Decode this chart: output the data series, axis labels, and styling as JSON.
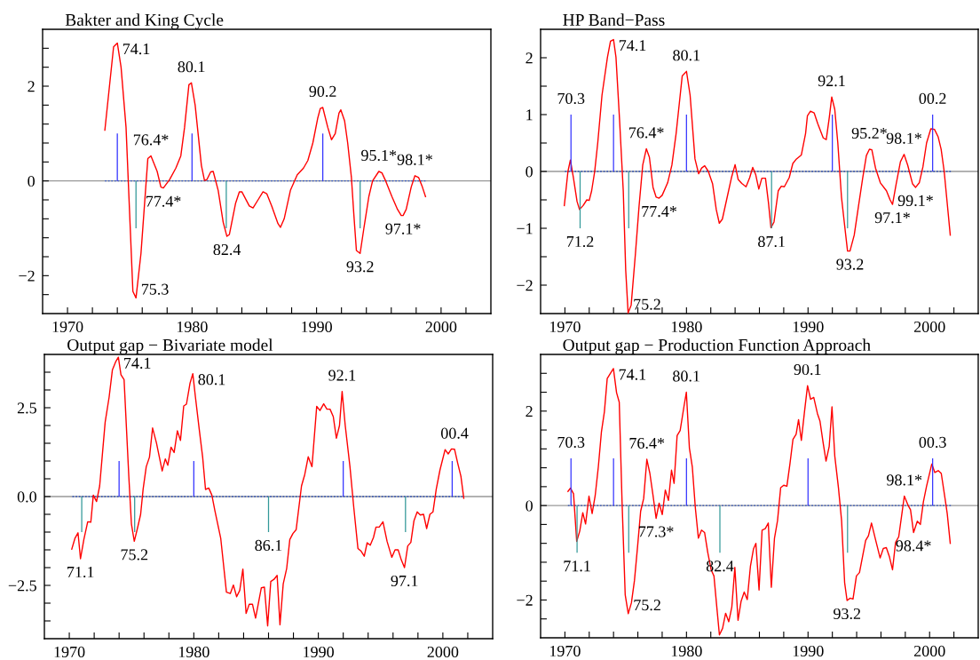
{
  "chart_data": [
    {
      "type": "line",
      "title": "Bakter and King Cycle",
      "xlim": [
        1968,
        2004
      ],
      "ylim": [
        -2.8,
        3.2
      ],
      "xticks": [
        1970,
        {
          "value": 1972,
          "label": null
        },
        {
          "value": 1974,
          "label": null
        },
        {
          "value": 1976,
          "label": null
        },
        {
          "value": 1978,
          "label": null
        },
        1980,
        {
          "value": 1982,
          "label": null
        },
        {
          "value": 1984,
          "label": null
        },
        {
          "value": 1986,
          "label": null
        },
        {
          "value": 1988,
          "label": null
        },
        1990,
        {
          "value": 1992,
          "label": null
        },
        {
          "value": 1994,
          "label": null
        },
        {
          "value": 1996,
          "label": null
        },
        {
          "value": 1998,
          "label": null
        },
        2000,
        {
          "value": 2002,
          "label": null
        }
      ],
      "yticks": [
        {
          "value": -2.4,
          "label": null
        },
        {
          "value": -2,
          "label": "−2"
        },
        {
          "value": -1.6,
          "label": null
        },
        {
          "value": -1.2,
          "label": null
        },
        {
          "value": -0.8,
          "label": null
        },
        {
          "value": -0.4,
          "label": null
        },
        0,
        {
          "value": 0.4,
          "label": null
        },
        {
          "value": 0.8,
          "label": null
        },
        {
          "value": 1.2,
          "label": null
        },
        {
          "value": 1.6,
          "label": null
        },
        2,
        {
          "value": 2.4,
          "label": null
        },
        {
          "value": 2.8,
          "label": null
        }
      ],
      "ref_lines": [
        {
          "axis": "y",
          "value": 0,
          "color": "#999999"
        }
      ],
      "series": [
        {
          "type": "line",
          "line_style": "dotted",
          "color": "#3355bb",
          "x": [
            1973.0,
            1998.75
          ],
          "values": [
            0,
            0
          ]
        },
        {
          "type": "bar",
          "color": "#3333ff",
          "x": [
            1974.0,
            1980.0,
            1990.5
          ],
          "values": [
            1,
            1,
            1
          ]
        },
        {
          "type": "bar",
          "color": "#339999",
          "x": [
            1975.5,
            1982.75,
            1993.5
          ],
          "values": [
            -1,
            -1,
            -1
          ]
        },
        {
          "type": "line",
          "color": "#ff0000",
          "x": [
            1973.0,
            1973.7,
            1974.0,
            1974.3,
            1974.7,
            1975.25,
            1975.5,
            1975.9,
            1976.45,
            1976.7,
            1977.2,
            1977.5,
            1977.7,
            1978.2,
            1978.7,
            1979.1,
            1979.4,
            1979.75,
            1979.95,
            1980.25,
            1980.75,
            1981.0,
            1981.2,
            1981.5,
            1981.7,
            1982.1,
            1982.5,
            1982.8,
            1983.0,
            1983.5,
            1983.8,
            1984.0,
            1984.6,
            1984.9,
            1985.3,
            1985.7,
            1986.0,
            1986.4,
            1986.9,
            1987.1,
            1987.4,
            1987.9,
            1988.45,
            1988.95,
            1989.3,
            1989.7,
            1990.1,
            1990.3,
            1990.5,
            1990.9,
            1991.2,
            1991.5,
            1991.8,
            1991.95,
            1992.25,
            1992.5,
            1992.8,
            1993.0,
            1993.2,
            1993.5,
            1993.8,
            1994.2,
            1994.5,
            1995.0,
            1995.25,
            1995.55,
            1996.05,
            1996.5,
            1996.8,
            1996.95,
            1997.2,
            1997.6,
            1997.9,
            1998.2,
            1998.5,
            1998.75
          ],
          "values": [
            1.07,
            2.83,
            2.91,
            2.4,
            1.13,
            -2.33,
            -2.47,
            -1.53,
            0.47,
            0.53,
            0.2,
            -0.13,
            -0.15,
            0.03,
            0.27,
            0.53,
            1.13,
            2.03,
            2.07,
            1.6,
            0.33,
            0.01,
            0.03,
            0.19,
            0.2,
            -0.2,
            -0.87,
            -1.17,
            -1.13,
            -0.47,
            -0.23,
            -0.23,
            -0.53,
            -0.57,
            -0.4,
            -0.23,
            -0.27,
            -0.53,
            -0.9,
            -0.98,
            -0.8,
            -0.2,
            0.13,
            0.27,
            0.43,
            0.8,
            1.33,
            1.53,
            1.55,
            1.13,
            0.87,
            1.0,
            1.43,
            1.5,
            1.27,
            0.8,
            0.07,
            -0.73,
            -1.47,
            -1.53,
            -1.0,
            -0.33,
            0.0,
            0.2,
            0.17,
            0.0,
            -0.33,
            -0.6,
            -0.73,
            -0.73,
            -0.6,
            -0.13,
            0.11,
            0.07,
            -0.13,
            -0.33
          ]
        }
      ],
      "annotations": [
        {
          "text": "74.1",
          "x": 1974.0,
          "y": 2.91
        },
        {
          "text": "75.3",
          "x": 1975.5,
          "y": -2.47
        },
        {
          "text": "76.4*",
          "x": 1976.7,
          "y": 0.53
        },
        {
          "text": "77.4*",
          "x": 1977.7,
          "y": -0.15
        },
        {
          "text": "80.1",
          "x": 1979.95,
          "y": 2.07
        },
        {
          "text": "82.4",
          "x": 1982.8,
          "y": -1.17
        },
        {
          "text": "90.2",
          "x": 1990.5,
          "y": 1.55
        },
        {
          "text": "93.2",
          "x": 1993.5,
          "y": -1.53
        },
        {
          "text": "95.1*",
          "x": 1995.0,
          "y": 0.2
        },
        {
          "text": "97.1*",
          "x": 1996.95,
          "y": -0.73
        },
        {
          "text": "98.1*",
          "x": 1997.9,
          "y": 0.11
        }
      ]
    },
    {
      "type": "line",
      "title": "HP Band−Pass",
      "xlim": [
        1968,
        2004
      ],
      "ylim": [
        -2.5,
        2.5
      ],
      "xticks": [
        1970,
        {
          "value": 1972,
          "label": null
        },
        {
          "value": 1974,
          "label": null
        },
        {
          "value": 1976,
          "label": null
        },
        {
          "value": 1978,
          "label": null
        },
        1980,
        {
          "value": 1982,
          "label": null
        },
        {
          "value": 1984,
          "label": null
        },
        {
          "value": 1986,
          "label": null
        },
        {
          "value": 1988,
          "label": null
        },
        1990,
        {
          "value": 1992,
          "label": null
        },
        {
          "value": 1994,
          "label": null
        },
        {
          "value": 1996,
          "label": null
        },
        {
          "value": 1998,
          "label": null
        },
        2000,
        {
          "value": 2002,
          "label": null
        }
      ],
      "yticks": [
        {
          "value": -2,
          "label": "−2"
        },
        {
          "value": -1.5,
          "label": null
        },
        {
          "value": -1,
          "label": "−1"
        },
        {
          "value": -0.5,
          "label": null
        },
        0,
        {
          "value": 0.5,
          "label": null
        },
        1,
        {
          "value": 1.5,
          "label": null
        },
        2
      ],
      "ref_lines": [
        {
          "axis": "y",
          "value": 0,
          "color": "#999999"
        }
      ],
      "series": [
        {
          "type": "line",
          "line_style": "dotted",
          "color": "#3355bb",
          "x": [
            1970.0,
            2001.75
          ],
          "values": [
            0,
            0
          ]
        },
        {
          "type": "bar",
          "color": "#3333ff",
          "x": [
            1970.5,
            1974.0,
            1980.0,
            1992.0,
            2000.25
          ],
          "values": [
            1,
            1,
            1,
            1,
            1
          ]
        },
        {
          "type": "bar",
          "color": "#339999",
          "x": [
            1971.25,
            1975.25,
            1987.0,
            1993.25
          ],
          "values": [
            -1,
            -1,
            -1,
            -1
          ]
        },
        {
          "type": "line",
          "color": "#ff0000",
          "x": [
            1969.95,
            1970.25,
            1970.45,
            1970.7,
            1971.0,
            1971.2,
            1971.5,
            1971.8,
            1972.0,
            1972.2,
            1972.45,
            1972.7,
            1973.05,
            1973.5,
            1973.75,
            1974.0,
            1974.2,
            1974.5,
            1974.8,
            1975.0,
            1975.2,
            1975.45,
            1975.8,
            1976.1,
            1976.4,
            1976.7,
            1976.95,
            1977.25,
            1977.5,
            1977.75,
            1978.0,
            1978.45,
            1978.8,
            1979.15,
            1979.65,
            1980.0,
            1980.3,
            1980.7,
            1981.0,
            1981.25,
            1981.5,
            1981.8,
            1982.15,
            1982.45,
            1982.7,
            1982.95,
            1983.3,
            1983.7,
            1984.0,
            1984.25,
            1984.55,
            1984.9,
            1985.2,
            1985.45,
            1985.7,
            1985.95,
            1986.2,
            1986.5,
            1986.75,
            1986.95,
            1987.2,
            1987.55,
            1987.8,
            1988.05,
            1988.45,
            1988.75,
            1989.05,
            1989.45,
            1989.8,
            1989.95,
            1990.2,
            1990.5,
            1990.8,
            1991.25,
            1991.5,
            1991.75,
            1991.95,
            1992.2,
            1992.45,
            1992.75,
            1993.1,
            1993.25,
            1993.45,
            1993.8,
            1994.15,
            1994.5,
            1994.8,
            1995.05,
            1995.25,
            1995.55,
            1995.95,
            1996.45,
            1996.75,
            1996.95,
            1997.25,
            1997.6,
            1997.9,
            1998.2,
            1998.6,
            1998.85,
            1999.15,
            1999.45,
            1999.75,
            2000.1,
            2000.4,
            2000.7,
            2000.95,
            2001.2,
            2001.4,
            2001.7
          ],
          "values": [
            -0.6,
            0.0,
            0.2,
            -0.11,
            -0.53,
            -0.67,
            -0.6,
            -0.5,
            -0.51,
            -0.34,
            0.0,
            0.5,
            1.34,
            2.01,
            2.29,
            2.32,
            2.01,
            0.89,
            -0.34,
            -1.73,
            -2.49,
            -2.35,
            -1.45,
            -0.61,
            0.11,
            0.4,
            0.25,
            -0.28,
            -0.45,
            -0.47,
            -0.42,
            -0.2,
            0.11,
            0.67,
            1.68,
            1.76,
            1.34,
            0.22,
            -0.04,
            0.06,
            0.1,
            0.0,
            -0.22,
            -0.67,
            -0.91,
            -0.84,
            -0.5,
            -0.11,
            0.12,
            -0.14,
            -0.21,
            -0.27,
            -0.11,
            0.07,
            -0.06,
            -0.31,
            -0.12,
            -0.12,
            -0.56,
            -0.99,
            -0.89,
            -0.34,
            -0.26,
            -0.27,
            -0.11,
            0.14,
            0.22,
            0.29,
            0.67,
            0.98,
            1.06,
            1.03,
            0.84,
            0.59,
            0.56,
            0.95,
            1.31,
            1.09,
            0.5,
            -0.45,
            -1.12,
            -1.4,
            -1.4,
            -1.12,
            -0.61,
            -0.11,
            0.28,
            0.39,
            0.38,
            0.06,
            -0.2,
            -0.34,
            -0.5,
            -0.58,
            -0.22,
            0.17,
            0.3,
            0.11,
            -0.22,
            -0.28,
            -0.2,
            0.08,
            0.5,
            0.75,
            0.74,
            0.61,
            0.39,
            0.0,
            -0.45,
            -1.12
          ]
        }
      ],
      "annotations": [
        {
          "text": "70.3",
          "x": 1970.5,
          "y": 1
        },
        {
          "text": "71.2",
          "x": 1971.25,
          "y": -1
        },
        {
          "text": "74.1",
          "x": 1974.0,
          "y": 2.32
        },
        {
          "text": "75.2",
          "x": 1975.2,
          "y": -2.49
        },
        {
          "text": "76.4*",
          "x": 1976.7,
          "y": 0.4
        },
        {
          "text": "77.4*",
          "x": 1977.75,
          "y": -0.47
        },
        {
          "text": "80.1",
          "x": 1980.0,
          "y": 1.76
        },
        {
          "text": "87.1",
          "x": 1987.0,
          "y": -1
        },
        {
          "text": "92.1",
          "x": 1991.95,
          "y": 1.31
        },
        {
          "text": "93.2",
          "x": 1993.45,
          "y": -1.4
        },
        {
          "text": "95.2*",
          "x": 1995.05,
          "y": 0.39
        },
        {
          "text": "98.1*",
          "x": 1997.9,
          "y": 0.3
        },
        {
          "text": "99.1*",
          "x": 1998.85,
          "y": -0.28
        },
        {
          "text": "97.1*",
          "x": 1996.95,
          "y": -0.58
        },
        {
          "text": "00.2",
          "x": 2000.25,
          "y": 1
        }
      ]
    },
    {
      "type": "line",
      "title": "Output gap − Bivariate model",
      "xlim": [
        1968,
        2004
      ],
      "ylim": [
        -4,
        4
      ],
      "xticks": [
        1970,
        {
          "value": 1972,
          "label": null
        },
        {
          "value": 1974,
          "label": null
        },
        {
          "value": 1976,
          "label": null
        },
        {
          "value": 1978,
          "label": null
        },
        1980,
        {
          "value": 1982,
          "label": null
        },
        {
          "value": 1984,
          "label": null
        },
        {
          "value": 1986,
          "label": null
        },
        {
          "value": 1988,
          "label": null
        },
        1990,
        {
          "value": 1992,
          "label": null
        },
        {
          "value": 1994,
          "label": null
        },
        {
          "value": 1996,
          "label": null
        },
        {
          "value": 1998,
          "label": null
        },
        2000,
        {
          "value": 2002,
          "label": null
        }
      ],
      "yticks": [
        {
          "value": -3.5,
          "label": null
        },
        {
          "value": -3,
          "label": null
        },
        {
          "value": -2.5,
          "label": "−2.5"
        },
        {
          "value": -2,
          "label": null
        },
        {
          "value": -1.5,
          "label": null
        },
        {
          "value": -1,
          "label": null
        },
        {
          "value": -0.5,
          "label": null
        },
        {
          "value": 0,
          "label": "0.0"
        },
        {
          "value": 0.5,
          "label": null
        },
        {
          "value": 1,
          "label": null
        },
        {
          "value": 1.5,
          "label": null
        },
        {
          "value": 2,
          "label": null
        },
        2.5,
        {
          "value": 3,
          "label": null
        },
        {
          "value": 3.5,
          "label": null
        }
      ],
      "ref_lines": [
        {
          "axis": "y",
          "value": 0,
          "color": "#999999"
        }
      ],
      "series": [
        {
          "type": "line",
          "line_style": "dotted",
          "color": "#3355bb",
          "x": [
            1970.25,
            2001.6
          ],
          "values": [
            0,
            0
          ]
        },
        {
          "type": "bar",
          "color": "#3333ff",
          "x": [
            1974.0,
            1980.0,
            1992.0,
            2000.75
          ],
          "values": [
            1,
            1,
            1,
            1
          ]
        },
        {
          "type": "bar",
          "color": "#339999",
          "x": [
            1971.0,
            1975.25,
            1986.0,
            1997.0
          ],
          "values": [
            -1,
            -1,
            -1,
            -1
          ]
        },
        {
          "type": "line",
          "color": "#ff0000",
          "x": [
            1970.2,
            1970.46,
            1970.7,
            1970.9,
            1971.17,
            1971.48,
            1971.73,
            1971.93,
            1972.19,
            1972.44,
            1972.88,
            1973.2,
            1973.46,
            1973.72,
            1973.94,
            1974.15,
            1974.4,
            1974.78,
            1974.99,
            1975.22,
            1975.47,
            1975.73,
            1975.93,
            1976.18,
            1976.44,
            1976.69,
            1977.0,
            1977.46,
            1977.71,
            1977.91,
            1978.17,
            1978.42,
            1978.68,
            1978.93,
            1979.19,
            1979.41,
            1979.69,
            1979.92,
            1980.13,
            1980.43,
            1980.71,
            1980.94,
            1981.2,
            1981.45,
            1981.7,
            1982.16,
            1982.62,
            1982.93,
            1983.18,
            1983.44,
            1983.69,
            1983.94,
            1984.2,
            1984.45,
            1984.71,
            1984.96,
            1985.42,
            1985.67,
            1985.93,
            1986.18,
            1986.44,
            1986.69,
            1986.92,
            1987.18,
            1987.46,
            1987.71,
            1987.96,
            1988.22,
            1988.65,
            1988.91,
            1989.19,
            1989.49,
            1989.87,
            1990.13,
            1990.43,
            1990.69,
            1990.94,
            1991.2,
            1991.45,
            1991.7,
            1991.91,
            1992.16,
            1992.54,
            1992.85,
            1993.18,
            1993.44,
            1993.69,
            1993.92,
            1994.17,
            1994.43,
            1994.63,
            1994.89,
            1995.19,
            1995.52,
            1995.9,
            1996.16,
            1996.41,
            1996.67,
            1996.92,
            1997.18,
            1997.43,
            1997.68,
            1997.94,
            1998.19,
            1998.45,
            1998.7,
            1998.96,
            1999.21,
            1999.47,
            1999.77,
            2000.18,
            2000.43,
            2000.69,
            2000.94,
            2001.2,
            2001.45,
            2001.68
          ],
          "values": [
            -1.48,
            -1.17,
            -1.02,
            -1.75,
            -1.21,
            -0.71,
            -0.72,
            0.04,
            -0.14,
            0.3,
            2.09,
            2.8,
            3.56,
            3.79,
            3.92,
            3.43,
            3.29,
            0.57,
            -0.77,
            -1.26,
            -0.9,
            -0.5,
            0.21,
            0.84,
            1.11,
            1.93,
            1.51,
            0.72,
            1.06,
            0.88,
            1.39,
            1.24,
            1.85,
            1.58,
            2.55,
            2.6,
            3.18,
            3.46,
            2.8,
            1.91,
            1.11,
            0.2,
            0.24,
            0.04,
            -0.41,
            -1.17,
            -2.69,
            -2.73,
            -2.49,
            -2.82,
            -2.64,
            -2.04,
            -3.29,
            -3.03,
            -3.03,
            -3.42,
            -2.57,
            -2.55,
            -3.64,
            -2.39,
            -2.33,
            -2.22,
            -3.61,
            -2.46,
            -2.02,
            -1.21,
            -1.04,
            -0.93,
            0.3,
            0.62,
            1.12,
            0.84,
            2.54,
            2.42,
            2.61,
            2.46,
            2.46,
            2.25,
            1.64,
            2.0,
            2.96,
            2.0,
            0.84,
            -0.32,
            -1.46,
            -1.54,
            -1.68,
            -1.3,
            -1.37,
            -1.15,
            -0.86,
            -0.86,
            -0.71,
            -1.26,
            -1.71,
            -1.5,
            -1.5,
            -1.79,
            -2.0,
            -1.39,
            -1.29,
            -0.68,
            -0.43,
            -0.52,
            -0.5,
            -0.9,
            -0.5,
            -0.43,
            0.21,
            0.75,
            1.32,
            1.2,
            1.34,
            1.33,
            0.93,
            0.57,
            -0.05
          ]
        }
      ],
      "annotations": [
        {
          "text": "71.1",
          "x": 1970.9,
          "y": -1.75
        },
        {
          "text": "74.1",
          "x": 1973.94,
          "y": 3.92
        },
        {
          "text": "75.2",
          "x": 1975.22,
          "y": -1.26
        },
        {
          "text": "80.1",
          "x": 1979.92,
          "y": 3.46
        },
        {
          "text": "86.1",
          "x": 1986.0,
          "y": -1
        },
        {
          "text": "92.1",
          "x": 1991.91,
          "y": 2.96
        },
        {
          "text": "97.1",
          "x": 1996.92,
          "y": -2.0
        },
        {
          "text": "00.4",
          "x": 2000.94,
          "y": 1.33
        }
      ]
    },
    {
      "type": "line",
      "title": "Output gap − Production Function Approach",
      "xlim": [
        1968,
        2004
      ],
      "ylim": [
        -2.8,
        3.2
      ],
      "xticks": [
        1970,
        {
          "value": 1972,
          "label": null
        },
        {
          "value": 1974,
          "label": null
        },
        {
          "value": 1976,
          "label": null
        },
        {
          "value": 1978,
          "label": null
        },
        1980,
        {
          "value": 1982,
          "label": null
        },
        {
          "value": 1984,
          "label": null
        },
        {
          "value": 1986,
          "label": null
        },
        {
          "value": 1988,
          "label": null
        },
        1990,
        {
          "value": 1992,
          "label": null
        },
        {
          "value": 1994,
          "label": null
        },
        {
          "value": 1996,
          "label": null
        },
        {
          "value": 1998,
          "label": null
        },
        2000,
        {
          "value": 2002,
          "label": null
        }
      ],
      "yticks": [
        {
          "value": -2.4,
          "label": null
        },
        {
          "value": -2,
          "label": "−2"
        },
        {
          "value": -1.6,
          "label": null
        },
        {
          "value": -1.2,
          "label": null
        },
        {
          "value": -0.8,
          "label": null
        },
        {
          "value": -0.4,
          "label": null
        },
        0,
        {
          "value": 0.4,
          "label": null
        },
        {
          "value": 0.8,
          "label": null
        },
        {
          "value": 1.2,
          "label": null
        },
        {
          "value": 1.6,
          "label": null
        },
        2,
        {
          "value": 2.4,
          "label": null
        },
        {
          "value": 2.8,
          "label": null
        }
      ],
      "ref_lines": [
        {
          "axis": "y",
          "value": 0,
          "color": "#999999"
        }
      ],
      "series": [
        {
          "type": "line",
          "line_style": "dotted",
          "color": "#3355bb",
          "x": [
            1970.25,
            2001.75
          ],
          "values": [
            0,
            0
          ]
        },
        {
          "type": "bar",
          "color": "#3333ff",
          "x": [
            1970.5,
            1974.0,
            1980.0,
            1990.0,
            2000.25
          ],
          "values": [
            1,
            1,
            1,
            1,
            1
          ]
        },
        {
          "type": "bar",
          "color": "#339999",
          "x": [
            1971.0,
            1975.25,
            1982.75,
            1993.25
          ],
          "values": [
            -1,
            -1,
            -1,
            -1
          ]
        },
        {
          "type": "line",
          "color": "#ff0000",
          "x": [
            1970.25,
            1970.46,
            1970.71,
            1970.97,
            1971.22,
            1971.47,
            1971.7,
            1971.98,
            1972.24,
            1972.49,
            1972.75,
            1973.0,
            1973.25,
            1973.48,
            1973.74,
            1973.99,
            1974.25,
            1974.47,
            1974.7,
            1974.96,
            1975.21,
            1975.47,
            1975.72,
            1975.98,
            1976.23,
            1976.48,
            1976.74,
            1976.99,
            1977.25,
            1977.5,
            1977.75,
            1978.01,
            1978.26,
            1978.52,
            1978.77,
            1978.98,
            1979.23,
            1979.48,
            1979.79,
            1979.99,
            1980.24,
            1980.48,
            1980.73,
            1980.98,
            1981.24,
            1981.49,
            1981.75,
            1982.03,
            1982.26,
            1982.51,
            1982.71,
            1982.97,
            1983.22,
            1983.48,
            1983.73,
            1983.98,
            1984.24,
            1984.49,
            1984.75,
            1985.0,
            1985.26,
            1985.51,
            1985.71,
            1985.97,
            1986.22,
            1986.48,
            1986.73,
            1986.98,
            1987.24,
            1987.49,
            1987.75,
            1988.0,
            1988.26,
            1988.51,
            1988.76,
            1989.02,
            1989.22,
            1989.45,
            1989.71,
            1989.96,
            1990.21,
            1990.47,
            1990.77,
            1990.98,
            1991.23,
            1991.48,
            1991.74,
            1991.97,
            1992.2,
            1992.5,
            1992.76,
            1993.01,
            1993.21,
            1993.47,
            1993.7,
            1993.98,
            1994.23,
            1994.74,
            1994.97,
            1995.22,
            1995.55,
            1995.93,
            1996.19,
            1996.44,
            1996.7,
            1996.95,
            1997.2,
            1997.46,
            1997.92,
            1998.22,
            1998.43,
            1998.68,
            1998.99,
            1999.24,
            1999.49,
            1999.75,
            2000.18,
            2000.43,
            2000.71,
            2000.96,
            2001.27,
            2001.45,
            2001.7
          ],
          "values": [
            0.3,
            0.37,
            0.25,
            -0.76,
            -0.54,
            -0.15,
            -0.39,
            0.2,
            -0.17,
            0.21,
            0.82,
            1.55,
            1.99,
            2.69,
            2.8,
            2.9,
            2.39,
            2.19,
            0.08,
            -1.89,
            -2.29,
            -2.06,
            -1.59,
            -0.86,
            -0.12,
            0.15,
            0.98,
            0.68,
            0.21,
            -0.27,
            0.05,
            -0.19,
            0.33,
            0.11,
            0.75,
            0.47,
            1.48,
            1.59,
            2.09,
            2.4,
            1.22,
            0.82,
            -0.05,
            -0.69,
            -0.52,
            -0.57,
            -0.99,
            -1.36,
            -1.49,
            -2.19,
            -2.74,
            -2.6,
            -2.28,
            -2.46,
            -2.15,
            -1.31,
            -2.43,
            -2.03,
            -1.83,
            -1.99,
            -1.29,
            -0.92,
            -0.8,
            -1.79,
            -0.52,
            -0.49,
            -0.37,
            -1.73,
            -0.69,
            -0.32,
            0.38,
            0.43,
            0.41,
            0.88,
            1.4,
            1.51,
            1.82,
            1.38,
            1.99,
            2.54,
            2.25,
            2.29,
            1.95,
            1.79,
            1.35,
            0.94,
            1.25,
            2.09,
            1.05,
            0.38,
            -0.32,
            -1.63,
            -2.01,
            -1.96,
            -1.98,
            -1.49,
            -1.42,
            -0.74,
            -0.64,
            -0.37,
            -0.72,
            -1.11,
            -0.91,
            -0.89,
            -1.09,
            -1.36,
            -0.78,
            -0.66,
            0.2,
            0.01,
            -0.09,
            -0.57,
            -0.33,
            -0.4,
            0.08,
            0.41,
            0.88,
            0.7,
            0.74,
            0.68,
            0.15,
            -0.17,
            -0.8
          ]
        }
      ],
      "annotations": [
        {
          "text": "70.3",
          "x": 1970.5,
          "y": 1
        },
        {
          "text": "71.1",
          "x": 1971.0,
          "y": -1
        },
        {
          "text": "74.1",
          "x": 1973.99,
          "y": 2.9
        },
        {
          "text": "75.2",
          "x": 1975.21,
          "y": -2.29
        },
        {
          "text": "76.4*",
          "x": 1976.74,
          "y": 0.98
        },
        {
          "text": "77.3*",
          "x": 1977.5,
          "y": -0.27
        },
        {
          "text": "80.1",
          "x": 1979.99,
          "y": 2.4
        },
        {
          "text": "82.4",
          "x": 1982.75,
          "y": -1
        },
        {
          "text": "90.1",
          "x": 1989.96,
          "y": 2.54
        },
        {
          "text": "93.2",
          "x": 1993.21,
          "y": -2.01
        },
        {
          "text": "98.1*",
          "x": 1997.92,
          "y": 0.2
        },
        {
          "text": "98.4*",
          "x": 1998.68,
          "y": -0.57
        },
        {
          "text": "00.3",
          "x": 2000.25,
          "y": 1
        }
      ]
    }
  ]
}
